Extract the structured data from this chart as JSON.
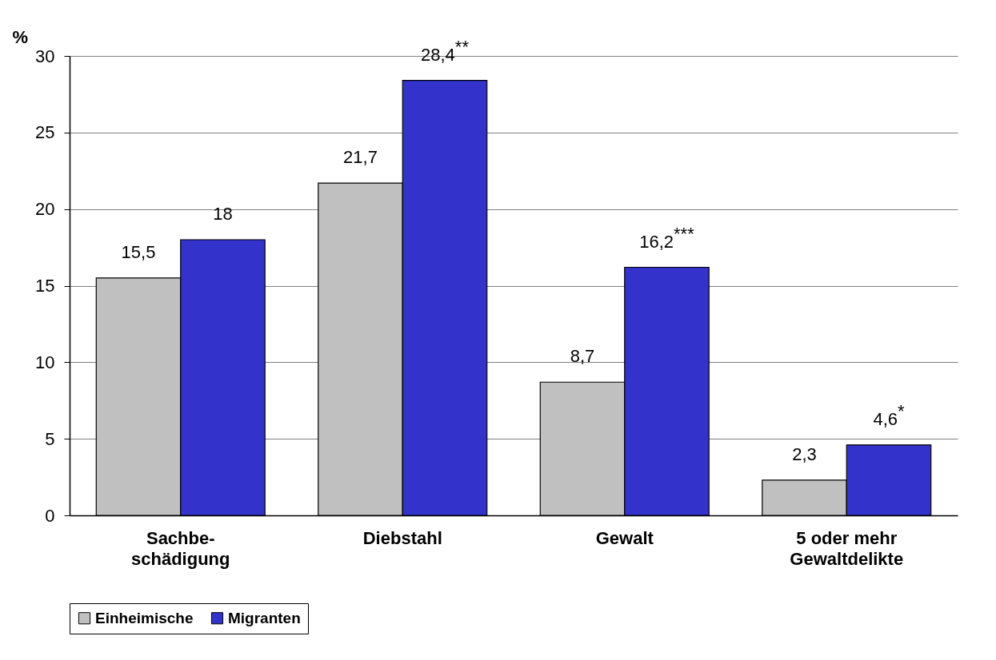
{
  "chart_data": {
    "type": "bar",
    "ylabel": "%",
    "categories": [
      "Sachbe-\nschädigung",
      "Diebstahl",
      "Gewalt",
      "5 oder mehr\nGewaltdelikte"
    ],
    "series": [
      {
        "name": "Einheimische",
        "color": "#c0c0c0",
        "values": [
          15.5,
          21.7,
          8.7,
          2.3
        ],
        "value_labels": [
          "15,5",
          "21,7",
          "8,7",
          "2,3"
        ]
      },
      {
        "name": "Migranten",
        "color": "#3333cc",
        "values": [
          18,
          28.4,
          16.2,
          4.6
        ],
        "value_labels": [
          "18",
          "28,4$^{**}$",
          "16,2$^{***}$",
          "4,6$^{*}$"
        ]
      }
    ],
    "ylim": [
      0,
      30
    ],
    "yticks": [
      0,
      5,
      10,
      15,
      20,
      25,
      30
    ],
    "grid": "y",
    "legend": "bottom"
  }
}
